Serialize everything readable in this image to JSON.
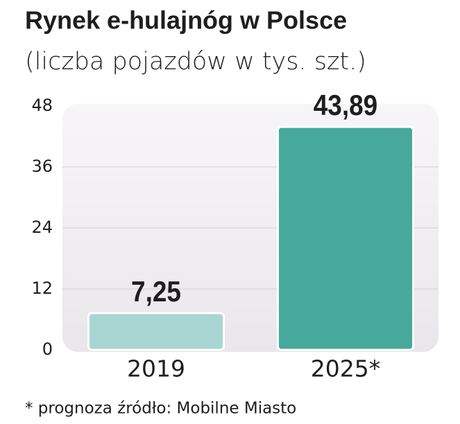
{
  "chart_data": {
    "type": "bar",
    "title": "Rynek e-hulajnóg w Polsce",
    "subtitle": "(liczba pojazdów w tys. szt.)",
    "categories": [
      "2019",
      "2025*"
    ],
    "values": [
      7.25,
      43.89
    ],
    "value_labels": [
      "7,25",
      "43,89"
    ],
    "colors": [
      "#a9d6d2",
      "#46a99b"
    ],
    "ylim": [
      0,
      48
    ],
    "yticks": [
      0,
      12,
      24,
      36,
      48
    ],
    "grid": true,
    "footnote": "* prognoza źródło: Mobilne Miasto"
  }
}
